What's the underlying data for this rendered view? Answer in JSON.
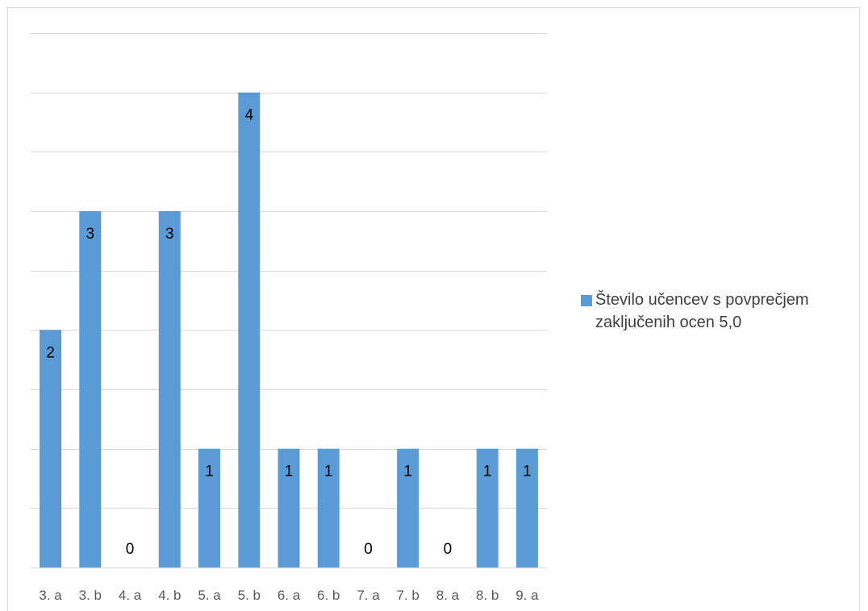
{
  "chart_data": {
    "type": "bar",
    "categories": [
      "3. a",
      "3. b",
      "4. a",
      "4. b",
      "5. a",
      "5. b",
      "6. a",
      "6. b",
      "7. a",
      "7. b",
      "8. a",
      "8. b",
      "9. a"
    ],
    "series": [
      {
        "name": "Število učencev s povprečjem zaključenih ocen 5,0",
        "values": [
          2,
          3,
          0,
          3,
          1,
          4,
          1,
          1,
          0,
          1,
          0,
          1,
          1
        ],
        "color": "#5b9bd5"
      }
    ],
    "ylim": [
      0,
      4.5
    ],
    "y_grid_step": 0.5,
    "grid": true,
    "y_tick_labels_shown": false,
    "data_labels": true,
    "legend_position": "right",
    "title": "",
    "xlabel": "",
    "ylabel": ""
  }
}
